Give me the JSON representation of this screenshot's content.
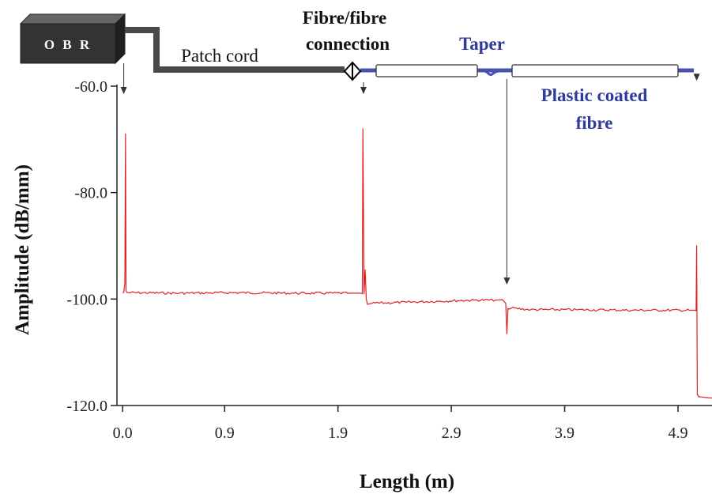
{
  "colors": {
    "trace": "#e02020",
    "taper_fibre": "#4a52b0",
    "patch_cord": "#4a4a4a",
    "obr_box": "#333333",
    "axis": "#222222",
    "diagram_text_dark": "#111111",
    "diagram_text_blue": "#2e3a9c"
  },
  "diagram": {
    "obr_label": "O B R",
    "patch_cord_label": "Patch cord",
    "connection_label_line1": "Fibre/fibre",
    "connection_label_line2": "connection",
    "taper_label": "Taper",
    "coated_label_line1": "Plastic coated",
    "coated_label_line2": "fibre"
  },
  "chart_data": {
    "type": "line",
    "title": "",
    "xlabel": "Length (m)",
    "ylabel": "Amplitude (dB/mm)",
    "xlim": [
      -0.05,
      5.2
    ],
    "ylim": [
      -120.0,
      -56.0
    ],
    "x_ticks": [
      0.0,
      0.9,
      1.9,
      2.9,
      3.9,
      4.9
    ],
    "x_tick_labels": [
      "0.0",
      "0.9",
      "1.9",
      "2.9",
      "3.9",
      "4.9"
    ],
    "y_ticks": [
      -60.0,
      -80.0,
      -100.0,
      -120.0
    ],
    "y_tick_labels": [
      "-60.0",
      "-80.0",
      "-100.0",
      "-120.0"
    ],
    "grid": false,
    "legend": "none",
    "series": [
      {
        "x": [
          0.0,
          0.01,
          0.02,
          0.025,
          0.03,
          0.04,
          0.5,
          1.0,
          1.5,
          2.0,
          2.1,
          2.115,
          2.12,
          2.125,
          2.13,
          2.14,
          2.15,
          2.16,
          2.2,
          2.5,
          2.8,
          3.1,
          3.3,
          3.35,
          3.38,
          3.39,
          3.4,
          3.41,
          3.43,
          3.6,
          4.0,
          4.5,
          5.0,
          5.05,
          5.06,
          5.065,
          5.07,
          5.075,
          5.08,
          5.1,
          5.15,
          5.2
        ],
        "y": [
          -98.8,
          -98.8,
          -97.0,
          -69.0,
          -98.5,
          -98.8,
          -98.9,
          -98.8,
          -98.9,
          -98.9,
          -98.9,
          -99.0,
          -68.0,
          -84.0,
          -99.0,
          -94.5,
          -100.0,
          -101.0,
          -100.8,
          -100.6,
          -100.4,
          -100.2,
          -100.2,
          -100.1,
          -100.8,
          -106.5,
          -101.8,
          -101.9,
          -101.7,
          -102.0,
          -102.0,
          -102.1,
          -102.1,
          -102.1,
          -102.2,
          -90.0,
          -118.0,
          -118.0,
          -118.3,
          -118.4,
          -118.5,
          -118.6
        ]
      }
    ],
    "event_markers_x": [
      0.01,
      2.125,
      3.39,
      5.065
    ]
  }
}
